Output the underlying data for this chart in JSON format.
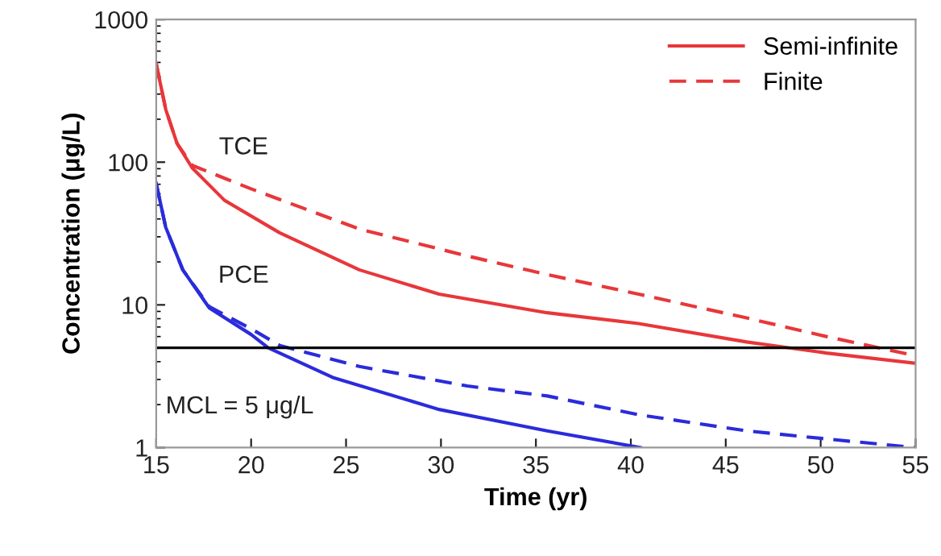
{
  "chart_data": {
    "type": "line",
    "xlabel": "Time (yr)",
    "ylabel": "Concentration (μg/L)",
    "log": "y",
    "xlim": [
      15,
      55
    ],
    "xticks": [
      15,
      20,
      25,
      30,
      35,
      40,
      45,
      50,
      55
    ],
    "ylim": [
      1,
      1000
    ],
    "yticks": [
      1,
      10,
      100,
      1000
    ],
    "grid": false,
    "legend": "top right",
    "marker": "none",
    "series": [
      {
        "name": "Semi-infinite",
        "color": "#e8373a",
        "line_style": "solid",
        "x": [
          15,
          15.5,
          16.1,
          16.9,
          18.6,
          21.5,
          25.7,
          29.9,
          35.6,
          40.4,
          46.1,
          50.3,
          55
        ],
        "values": [
          490,
          235,
          135,
          91,
          54,
          32,
          17.6,
          11.9,
          8.8,
          7.4,
          5.5,
          4.6,
          3.9
        ]
      },
      {
        "name": "Finite",
        "color": "#e8373a",
        "line_style": "dashed",
        "x": [
          15,
          15.5,
          16.1,
          16.9,
          20,
          25.7,
          31.4,
          35.6,
          40.4,
          46.1,
          50.3,
          55
        ],
        "values": [
          490,
          235,
          135,
          95,
          65,
          34,
          22,
          16.3,
          11.9,
          8.1,
          6.0,
          4.4
        ]
      },
      {
        "color": "#2b2bdc",
        "line_style": "solid",
        "x": [
          15,
          15.5,
          16.4,
          17.8,
          20,
          20.9,
          24.3,
          29.9,
          35.6,
          40.5
        ],
        "values": [
          71,
          35,
          17.6,
          9.5,
          6.2,
          5.0,
          3.1,
          1.85,
          1.31,
          1.0
        ]
      },
      {
        "color": "#2b2bdc",
        "line_style": "dashed",
        "x": [
          15,
          15.5,
          16.4,
          17.8,
          20,
          21.5,
          25.7,
          31.4,
          35.6,
          40.4,
          46.1,
          50.3,
          55
        ],
        "values": [
          71,
          35,
          17.6,
          9.7,
          6.8,
          5.2,
          3.7,
          2.7,
          2.3,
          1.7,
          1.31,
          1.15,
          1.0
        ]
      }
    ],
    "ref_lines": [
      {
        "axis": "y",
        "value": 5,
        "label": "MCL = 5 μg/L",
        "color": "#000000"
      }
    ],
    "annotations": [
      "TCE",
      "PCE"
    ]
  }
}
